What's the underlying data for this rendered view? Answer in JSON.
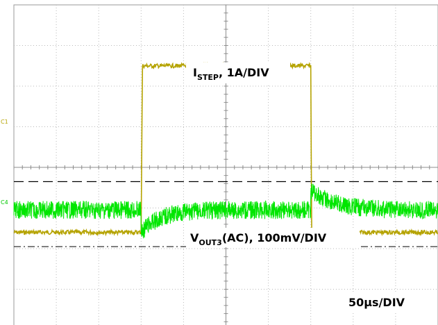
{
  "chart_data": {
    "type": "line",
    "title": "",
    "grid": true,
    "x_divisions": 10,
    "y_divisions": 8,
    "xlabel": "",
    "ylabel": "",
    "series": [
      {
        "name": "C1",
        "color": "#b5a300",
        "label_parts": {
          "main": "I",
          "sub": "STEP",
          "rest": ", 1A/DIV"
        },
        "low_level_div": 2.4,
        "high_level_div": 6.5,
        "step_up_div": 3.0,
        "step_down_div": 7.0
      },
      {
        "name": "C4",
        "color": "#00e600",
        "label_parts": {
          "main": "V",
          "sub": "OUT3",
          "rest": "(AC), 100mV/DIV"
        },
        "baseline_div": -1.05,
        "undershoot_div": -1.6,
        "overshoot_div": -0.55
      }
    ],
    "timebase_label": "50µs/DIV"
  }
}
